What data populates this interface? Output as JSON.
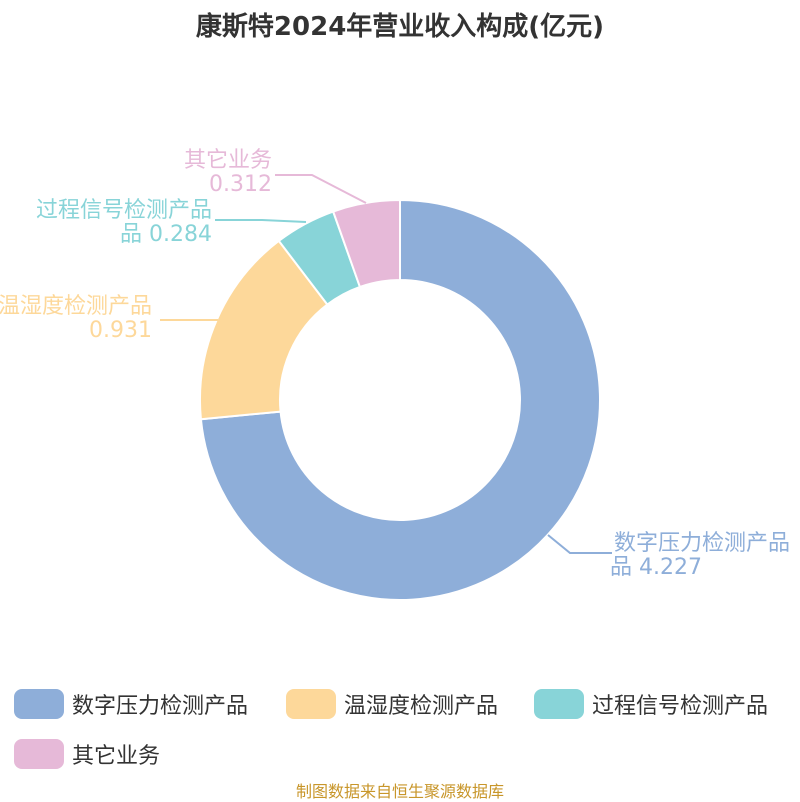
{
  "chart_data": {
    "type": "pie",
    "title": "康斯特2024年营业收入构成(亿元)",
    "categories": [
      "数字压力检测产品",
      "温湿度检测产品",
      "过程信号检测产品",
      "其它业务"
    ],
    "values": [
      4.227,
      0.931,
      0.284,
      0.312
    ],
    "colors": [
      "#8eaed9",
      "#fdd89a",
      "#88d4d8",
      "#e6b9d8"
    ],
    "slice_labels": [
      {
        "name_lines": [
          "数字压力检测产品"
        ],
        "value_text": "品 4.227"
      },
      {
        "name_lines": [
          "温湿度检测产品"
        ],
        "value_text": "0.931"
      },
      {
        "name_lines": [
          "过程信号检测产品"
        ],
        "value_text": "品 0.284"
      },
      {
        "name_lines": [
          "其它业务"
        ],
        "value_text": "0.312"
      }
    ],
    "legend_placement": "bottom",
    "donut": true
  },
  "source": "制图数据来自恒生聚源数据库"
}
